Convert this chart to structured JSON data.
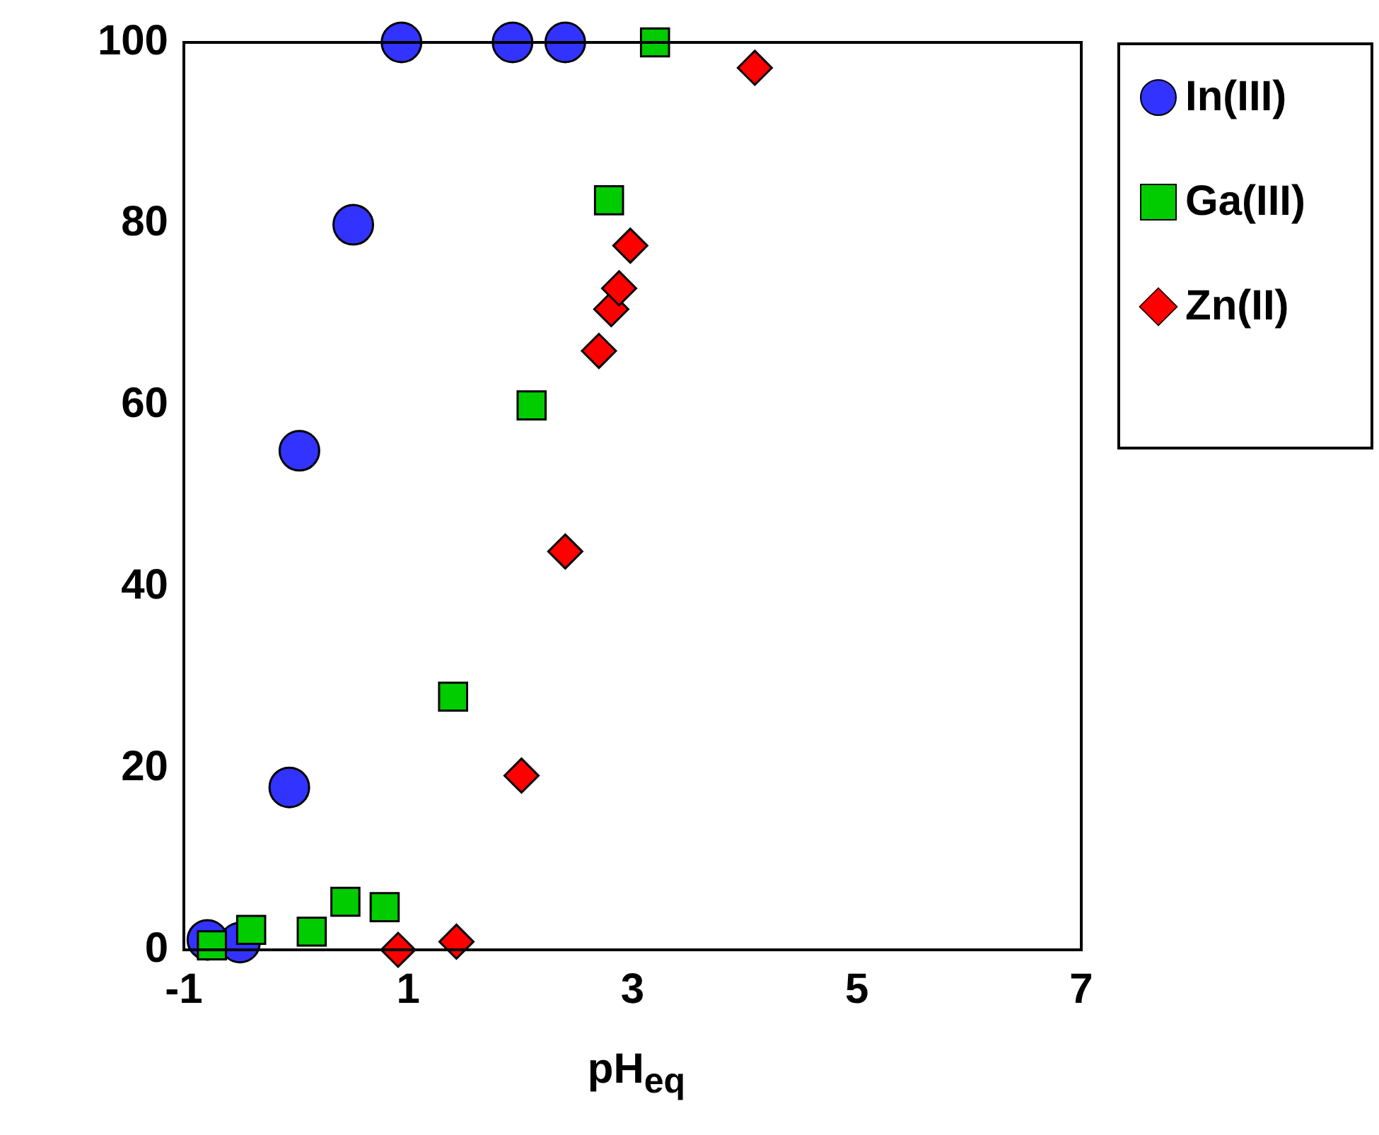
{
  "chart_data": {
    "type": "scatter",
    "xlabel": "pH$_{eq}$",
    "xlim": [
      -1,
      7
    ],
    "xticks": [
      -1,
      1,
      3,
      5,
      7
    ],
    "ylim": [
      0,
      100
    ],
    "yticks": [
      0,
      20,
      40,
      60,
      80,
      100
    ],
    "grid": false,
    "legend": "right",
    "series": [
      {
        "name": "In(III)",
        "color": "#3333ff",
        "marker": "circle",
        "x": [
          -0.79,
          -0.5,
          -0.06,
          0.03,
          0.51,
          0.94,
          1.93,
          2.4
        ],
        "values": [
          1.1,
          0.8,
          17.9,
          55,
          79.9,
          100,
          100,
          100
        ]
      },
      {
        "name": "Ga(III)",
        "color": "#00cc00",
        "marker": "square",
        "x": [
          -0.75,
          -0.4,
          0.14,
          0.44,
          0.79,
          1.4,
          2.1,
          2.79,
          3.2
        ],
        "values": [
          0.5,
          2.2,
          2,
          5.3,
          4.7,
          27.9,
          60,
          82.6,
          100
        ]
      },
      {
        "name": "Zn(II)",
        "color": "#ff0000",
        "marker": "diamond",
        "x": [
          0.91,
          1.43,
          2.01,
          2.4,
          2.7,
          2.81,
          2.88,
          2.98,
          4.09
        ],
        "values": [
          0,
          0.9,
          19.2,
          43.9,
          66,
          70.6,
          72.9,
          77.6,
          97.2
        ]
      }
    ]
  }
}
